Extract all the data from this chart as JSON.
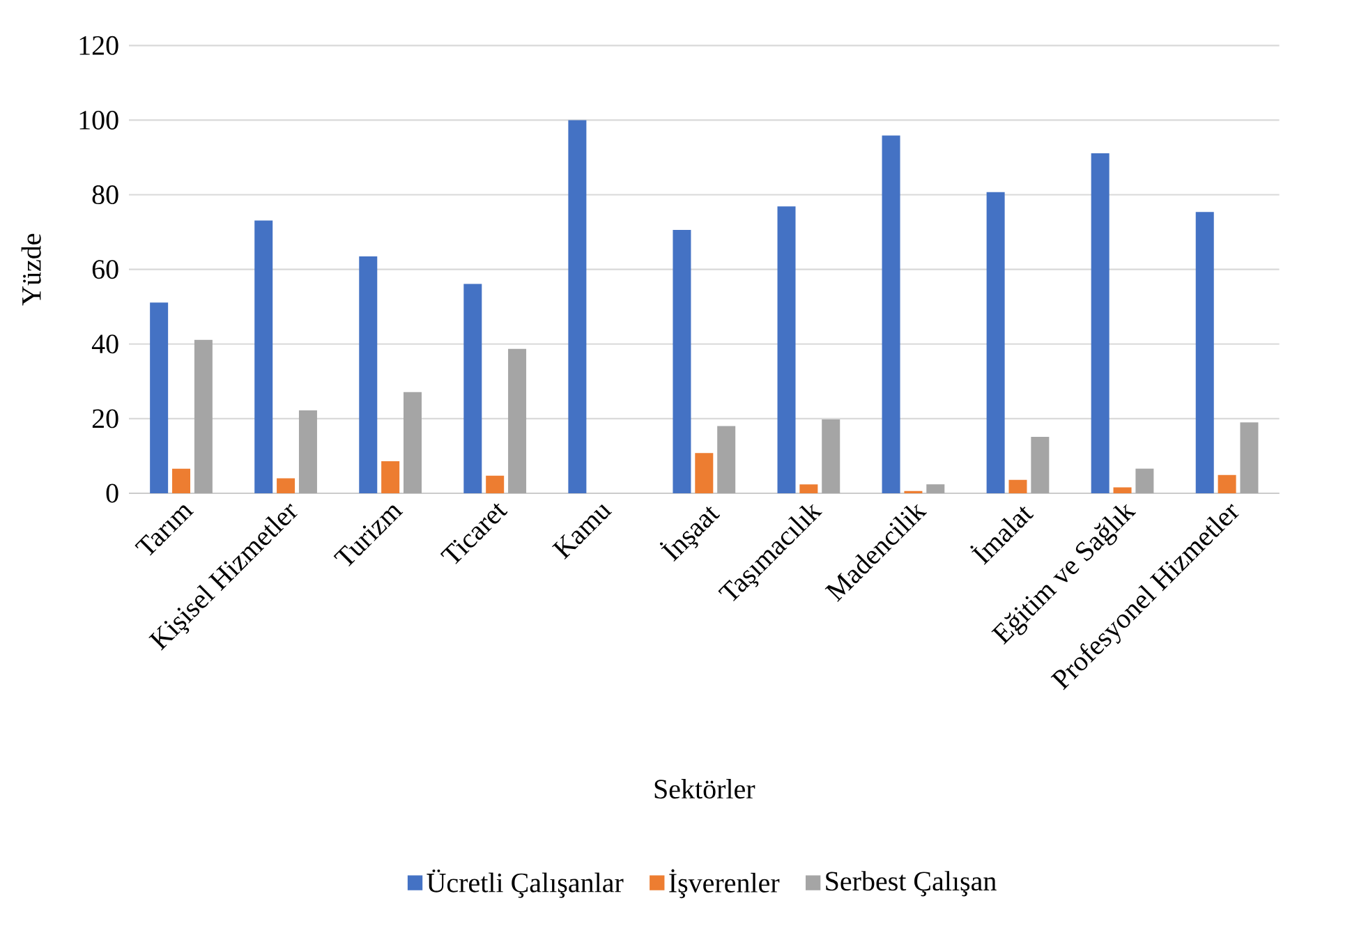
{
  "chart_data": {
    "type": "bar",
    "xlabel": "Sektörler",
    "ylabel": "Yüzde",
    "categories": [
      "Tarım",
      "Kişisel Hizmetler",
      "Turizm",
      "Ticaret",
      "Kamu",
      "İnşaat",
      "Taşımacılık",
      "Madencilik",
      "İmalat",
      "Eğitim ve Sağlık",
      "Profesyonel Hizmetler"
    ],
    "series": [
      {
        "name": "Ücretli Çalışanlar",
        "color": "#4472c4",
        "values": [
          51.1,
          73.1,
          63.5,
          56.1,
          100,
          70.6,
          76.9,
          95.9,
          80.7,
          91.1,
          75.4
        ]
      },
      {
        "name": "İşverenler",
        "color": "#ed7d31",
        "values": [
          6.6,
          4.0,
          8.6,
          4.7,
          0,
          10.8,
          2.4,
          0.6,
          3.6,
          1.6,
          4.9
        ]
      },
      {
        "name": "Serbest Çalışan",
        "color": "#a5a5a5",
        "values": [
          41.1,
          22.2,
          27.1,
          38.7,
          0,
          18.0,
          19.8,
          2.4,
          15.1,
          6.6,
          19.0
        ]
      }
    ],
    "ylim": [
      0,
      120
    ],
    "yticks": [
      0,
      20,
      40,
      60,
      80,
      100,
      120
    ],
    "grid": "y",
    "legend": "bottom"
  }
}
